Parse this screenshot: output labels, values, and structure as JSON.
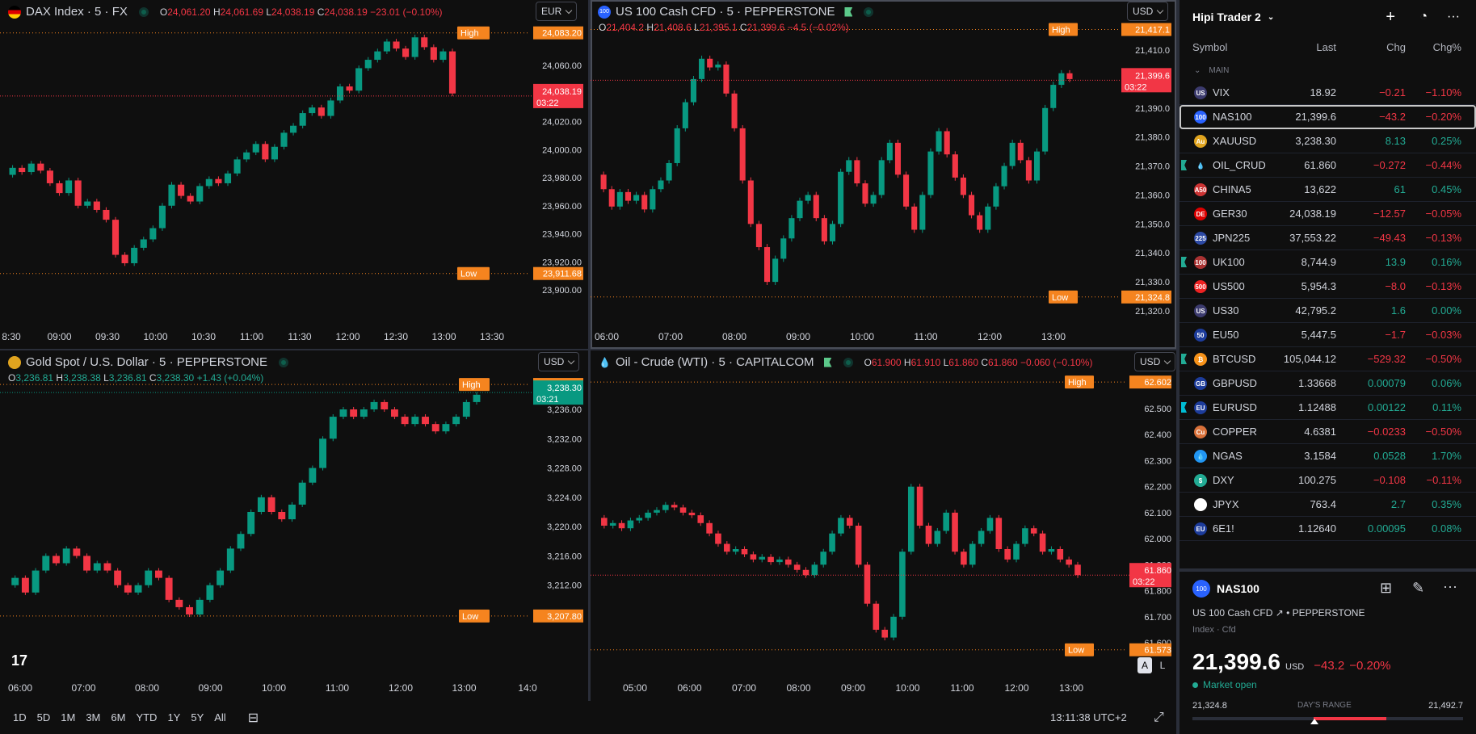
{
  "charts": [
    {
      "id": "dax",
      "title": "DAX Index · 5 · FX",
      "flag_colors": [
        "#000000",
        "#dd0000",
        "#ffce00"
      ],
      "ohlc": {
        "o": "24,061.20",
        "h": "24,061.69",
        "l": "24,038.19",
        "c": "24,038.19",
        "chg": "−23.01 (−0.10%)"
      },
      "currency": "EUR",
      "yticks": [
        "24,060.00",
        "24,040.00",
        "24,020.00",
        "24,000.00",
        "23,980.00",
        "23,960.00",
        "23,940.00",
        "23,920.00",
        "23,900.00"
      ],
      "xticks": [
        "8:30",
        "09:00",
        "09:30",
        "10:00",
        "10:30",
        "11:00",
        "11:30",
        "12:00",
        "12:30",
        "13:00",
        "13:30"
      ],
      "high": {
        "label": "High",
        "value": "24,083.20"
      },
      "low": {
        "label": "Low",
        "value": "23,911.68"
      },
      "last": {
        "value": "24,038.19",
        "timer": "03:22"
      },
      "series": [
        23982,
        23987,
        23984,
        23990,
        23985,
        23976,
        23969,
        23978,
        23960,
        23963,
        23957,
        23950,
        23925,
        23919,
        23930,
        23936,
        23944,
        23960,
        23975,
        23967,
        23963,
        23974,
        23979,
        23976,
        23983,
        23993,
        23998,
        24004,
        23993,
        24002,
        24012,
        24017,
        24026,
        24030,
        24024,
        24035,
        24045,
        24042,
        24058,
        24064,
        24070,
        24077,
        24072,
        24066,
        24080,
        24073,
        24064,
        24070,
        24040
      ]
    },
    {
      "id": "nas",
      "title": "US 100 Cash CFD · 5 · PEPPERSTONE",
      "ohlc2": {
        "o": "21,404.2",
        "h": "21,408.6",
        "l": "21,395.1",
        "c": "21,399.6",
        "chg": "−4.5 (−0.02%)"
      },
      "currency": "USD",
      "yticks": [
        "21,410.0",
        "21,400.0",
        "21,390.0",
        "21,380.0",
        "21,370.0",
        "21,360.0",
        "21,350.0",
        "21,340.0",
        "21,330.0",
        "21,320.0"
      ],
      "xticks": [
        "06:00",
        "07:00",
        "08:00",
        "09:00",
        "10:00",
        "11:00",
        "12:00",
        "13:00"
      ],
      "high": {
        "label": "High",
        "value": "21,417.1"
      },
      "low": {
        "label": "Low",
        "value": "21,324.8"
      },
      "last": {
        "value": "21,399.6",
        "timer": "03:22"
      },
      "series": [
        21367,
        21362,
        21356,
        21361,
        21358,
        21360,
        21355,
        21362,
        21365,
        21371,
        21383,
        21392,
        21400,
        21407,
        21404,
        21405,
        21395,
        21383,
        21365,
        21350,
        21342,
        21330,
        21338,
        21345,
        21352,
        21358,
        21360,
        21352,
        21344,
        21350,
        21368,
        21372,
        21364,
        21357,
        21360,
        21372,
        21378,
        21367,
        21356,
        21348,
        21360,
        21375,
        21382,
        21374,
        21366,
        21360,
        21353,
        21348,
        21356,
        21363,
        21370,
        21378,
        21372,
        21365,
        21375,
        21390,
        21398,
        21402,
        21400
      ]
    },
    {
      "id": "xau",
      "title": "Gold Spot / U.S. Dollar · 5 · PEPPERSTONE",
      "ohlc2": {
        "o": "3,236.81",
        "h": "3,238.38",
        "l": "3,236.81",
        "c": "3,238.30",
        "chg": "+1.43 (+0.04%)"
      },
      "currency": "USD",
      "yticks": [
        "3,236.00",
        "3,232.00",
        "3,228.00",
        "3,224.00",
        "3,220.00",
        "3,216.00",
        "3,212.00",
        "3,208.00"
      ],
      "xticks": [
        "06:00",
        "07:00",
        "08:00",
        "09:00",
        "10:00",
        "11:00",
        "12:00",
        "13:00",
        "14:0"
      ],
      "high": {
        "label": "High",
        "value": "3,239.41"
      },
      "low": {
        "label": "Low",
        "value": "3,207.80"
      },
      "last": {
        "value": "3,238.30",
        "timer": "03:21"
      },
      "series": [
        3212,
        3213,
        3211,
        3214,
        3216,
        3215,
        3217,
        3216,
        3214,
        3215,
        3214,
        3212,
        3211,
        3212,
        3214,
        3213,
        3210,
        3209,
        3208,
        3210,
        3212,
        3214,
        3217,
        3219,
        3222,
        3224,
        3222,
        3221,
        3223,
        3226,
        3228,
        3232,
        3235,
        3236,
        3235,
        3236,
        3237,
        3236,
        3235,
        3234,
        3235,
        3234,
        3233,
        3234,
        3235,
        3237,
        3238
      ]
    },
    {
      "id": "oil",
      "title": "Oil - Crude (WTI) · 5 · CAPITALCOM",
      "ohlc": {
        "o": "61.900",
        "h": "61.910",
        "l": "61.860",
        "c": "61.860",
        "chg": "−0.060 (−0.10%)"
      },
      "currency": "USD",
      "yticks": [
        "62.500",
        "62.400",
        "62.300",
        "62.200",
        "62.100",
        "62.000",
        "61.900",
        "61.800",
        "61.700",
        "61.600"
      ],
      "xticks": [
        "05:00",
        "06:00",
        "07:00",
        "08:00",
        "09:00",
        "10:00",
        "11:00",
        "12:00",
        "13:00"
      ],
      "high": {
        "label": "High",
        "value": "62.602"
      },
      "low": {
        "label": "Low",
        "value": "61.573"
      },
      "last": {
        "value": "61.860",
        "timer": "03:22"
      },
      "series": [
        62.08,
        62.05,
        62.06,
        62.04,
        62.07,
        62.08,
        62.1,
        62.11,
        62.13,
        62.12,
        62.1,
        62.09,
        62.06,
        62.02,
        61.98,
        61.95,
        61.96,
        61.94,
        61.92,
        61.93,
        61.91,
        61.92,
        61.9,
        61.88,
        61.86,
        61.9,
        61.95,
        62.02,
        62.08,
        62.05,
        61.9,
        61.75,
        61.65,
        61.62,
        61.7,
        61.95,
        62.2,
        62.05,
        61.98,
        62.03,
        62.1,
        61.95,
        61.9,
        61.98,
        62.03,
        62.08,
        61.96,
        61.92,
        61.98,
        62.04,
        62.02,
        61.95,
        61.96,
        61.92,
        61.9,
        61.86
      ]
    }
  ],
  "range_buttons": [
    "1D",
    "5D",
    "1M",
    "3M",
    "6M",
    "YTD",
    "1Y",
    "5Y",
    "All"
  ],
  "clock": "13:11:38 UTC+2",
  "scale_auto": "A",
  "scale_log": "L",
  "watchlist": {
    "name": "Hipi Trader 2",
    "columns": {
      "symbol": "Symbol",
      "last": "Last",
      "chg": "Chg",
      "pct": "Chg%"
    },
    "section": "MAIN",
    "rows": [
      {
        "symbol": "VIX",
        "last": "18.92",
        "chg": "−0.21",
        "pct": "−1.10%",
        "dir": "neg",
        "icon": "US",
        "color": "#3c3b6e"
      },
      {
        "symbol": "NAS100",
        "last": "21,399.6",
        "chg": "−43.2",
        "pct": "−0.20%",
        "dir": "neg",
        "icon": "100",
        "color": "#2962ff",
        "sel": true
      },
      {
        "symbol": "XAUUSD",
        "last": "3,238.30",
        "chg": "8.13",
        "pct": "0.25%",
        "dir": "pos",
        "icon": "Au",
        "color": "#e0a41f"
      },
      {
        "symbol": "OIL_CRUD",
        "last": "61.860",
        "chg": "−0.272",
        "pct": "−0.44%",
        "dir": "neg",
        "icon": "💧",
        "color": "#0f0f0f",
        "flag": "#22ab94"
      },
      {
        "symbol": "CHINA5",
        "last": "13,622",
        "chg": "61",
        "pct": "0.45%",
        "dir": "pos",
        "icon": "A50",
        "color": "#c33"
      },
      {
        "symbol": "GER30",
        "last": "24,038.19",
        "chg": "−12.57",
        "pct": "−0.05%",
        "dir": "neg",
        "icon": "DE",
        "color": "#d00"
      },
      {
        "symbol": "JPN225",
        "last": "37,553.22",
        "chg": "−49.43",
        "pct": "−0.13%",
        "dir": "neg",
        "icon": "225",
        "color": "#2d4aa5"
      },
      {
        "symbol": "UK100",
        "last": "8,744.9",
        "chg": "13.9",
        "pct": "0.16%",
        "dir": "pos",
        "icon": "100",
        "color": "#a33",
        "flag": "#22ab94"
      },
      {
        "symbol": "US500",
        "last": "5,954.3",
        "chg": "−8.0",
        "pct": "−0.13%",
        "dir": "neg",
        "icon": "500",
        "color": "#e22"
      },
      {
        "symbol": "US30",
        "last": "42,795.2",
        "chg": "1.6",
        "pct": "0.00%",
        "dir": "pos",
        "icon": "US",
        "color": "#3c3b6e"
      },
      {
        "symbol": "EU50",
        "last": "5,447.5",
        "chg": "−1.7",
        "pct": "−0.03%",
        "dir": "neg",
        "icon": "50",
        "color": "#1d3c9b"
      },
      {
        "symbol": "BTCUSD",
        "last": "105,044.12",
        "chg": "−529.32",
        "pct": "−0.50%",
        "dir": "neg",
        "icon": "₿",
        "color": "#f7931a",
        "flag": "#22ab94"
      },
      {
        "symbol": "GBPUSD",
        "last": "1.33668",
        "chg": "0.00079",
        "pct": "0.06%",
        "dir": "pos",
        "icon": "GB",
        "color": "#1d3c9b"
      },
      {
        "symbol": "EURUSD",
        "last": "1.12488",
        "chg": "0.00122",
        "pct": "0.11%",
        "dir": "pos",
        "icon": "EU",
        "color": "#1d3c9b",
        "flag": "#00bcd4"
      },
      {
        "symbol": "COPPER",
        "last": "4.6381",
        "chg": "−0.0233",
        "pct": "−0.50%",
        "dir": "neg",
        "icon": "Cu",
        "color": "#d9713a"
      },
      {
        "symbol": "NGAS",
        "last": "3.1584",
        "chg": "0.0528",
        "pct": "1.70%",
        "dir": "pos",
        "icon": "💧",
        "color": "#2196f3"
      },
      {
        "symbol": "DXY",
        "last": "100.275",
        "chg": "−0.108",
        "pct": "−0.11%",
        "dir": "neg",
        "icon": "$",
        "color": "#22ab94"
      },
      {
        "symbol": "JPYX",
        "last": "763.4",
        "chg": "2.7",
        "pct": "0.35%",
        "dir": "pos",
        "icon": "●",
        "color": "#ffffff"
      },
      {
        "symbol": "6E1!",
        "last": "1.12640",
        "chg": "0.00095",
        "pct": "0.08%",
        "dir": "pos",
        "icon": "EU",
        "color": "#1d3c9b"
      }
    ]
  },
  "detail": {
    "symbol": "NAS100",
    "name": "US 100 Cash CFD",
    "exchange": "PEPPERSTONE",
    "type": "Index · Cfd",
    "price": "21,399.6",
    "currency": "USD",
    "chg": "−43.2",
    "pct": "−0.20%",
    "status": "Market open",
    "range_low": "21,324.8",
    "range_label": "DAY'S RANGE",
    "range_high": "21,492.7",
    "range_pos": 0.45
  }
}
